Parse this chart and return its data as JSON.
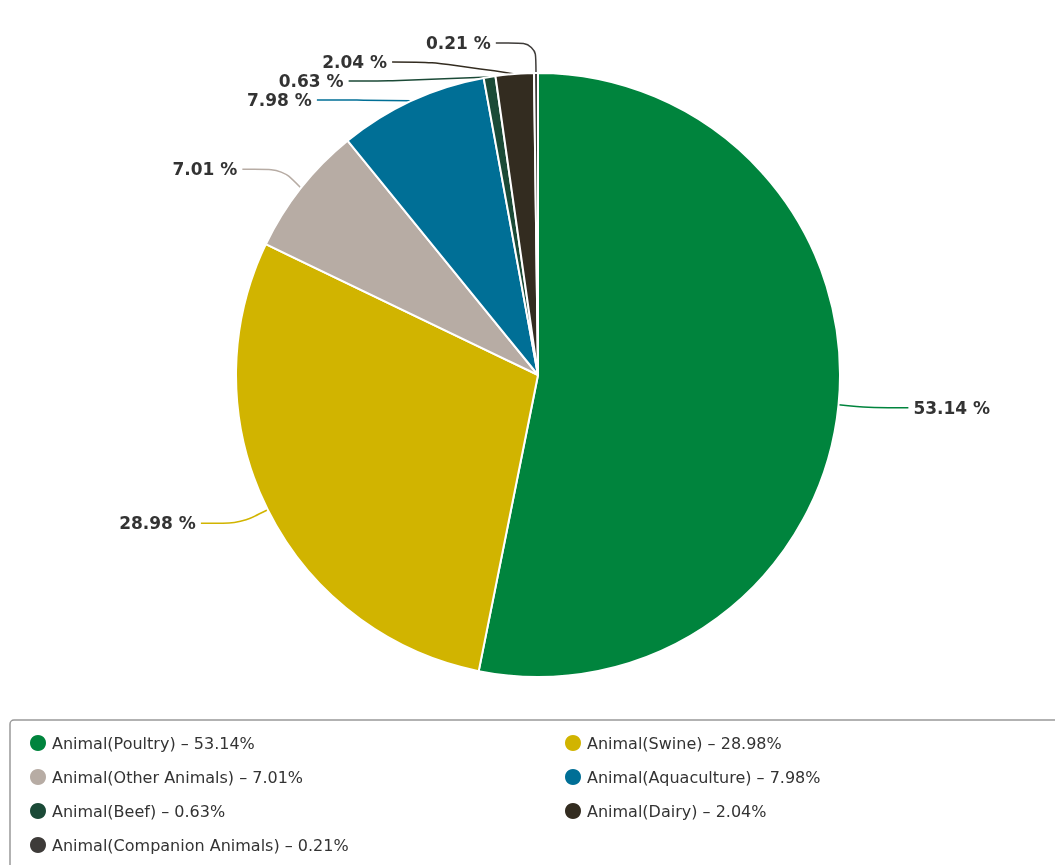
{
  "chart_data": {
    "type": "pie",
    "categories": [
      "Animal(Poultry) – 53.14%",
      "Animal(Swine) – 28.98%",
      "Animal(Other Animals) – 7.01%",
      "Animal(Aquaculture) – 7.98%",
      "Animal(Beef) – 0.63%",
      "Animal(Dairy) – 2.04%",
      "Animal(Companion Animals) – 0.21%"
    ],
    "values": [
      53.14,
      28.98,
      7.01,
      7.98,
      0.63,
      2.04,
      0.21
    ],
    "value_labels": [
      "53.14 %",
      "28.98 %",
      "7.01 %",
      "7.98 %",
      "0.63 %",
      "2.04 %",
      "0.21 %"
    ],
    "colors": [
      "#00843d",
      "#d1b400",
      "#b7aca4",
      "#006f96",
      "#1b4a37",
      "#332c20",
      "#3e3b39"
    ],
    "legend": "bottom"
  }
}
